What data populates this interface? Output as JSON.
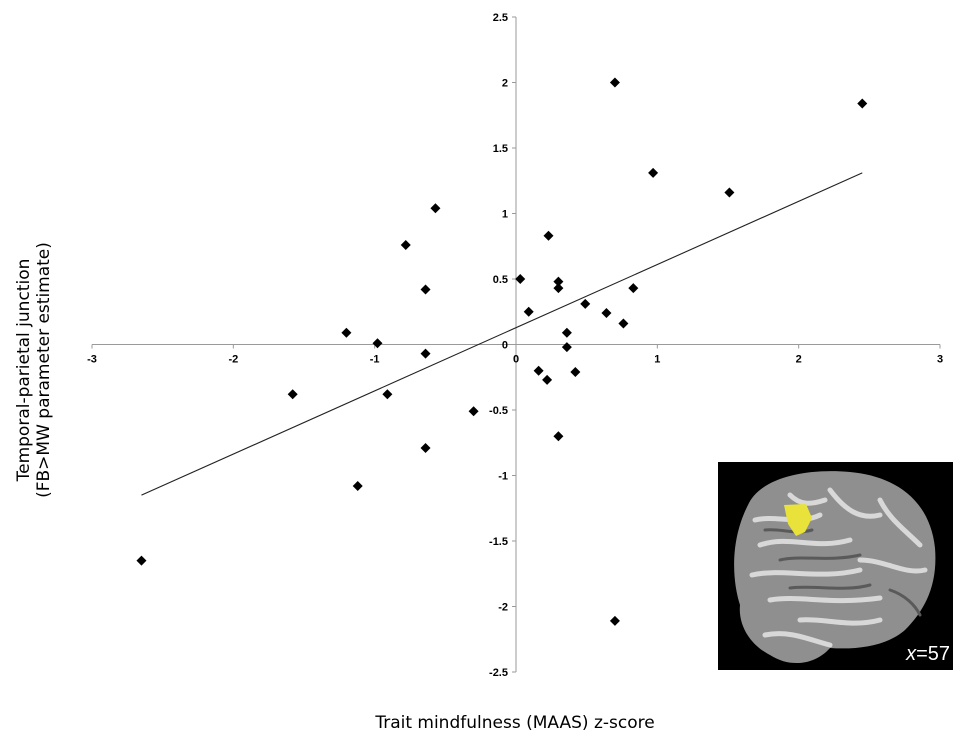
{
  "chart_data": {
    "type": "scatter",
    "xlabel": "Trait mindfulness (MAAS) z-score",
    "ylabel_line1": "Temporal-parietal junction",
    "ylabel_line2": "(FB>MW parameter estimate)",
    "xlim": [
      -3,
      3
    ],
    "ylim": [
      -2.5,
      2.5
    ],
    "xticks": [
      "-3",
      "-2",
      "-1",
      "0",
      "1",
      "2",
      "3"
    ],
    "yticks": [
      "2.5",
      "2",
      "1.5",
      "1",
      "0.5",
      "0",
      "-0.5",
      "-1",
      "-1.5",
      "-2",
      "-2.5"
    ],
    "grid": false,
    "marker": "diamond",
    "marker_color": "#000000",
    "points": [
      {
        "x": -2.65,
        "y": -1.65
      },
      {
        "x": -1.58,
        "y": -0.38
      },
      {
        "x": -1.2,
        "y": 0.09
      },
      {
        "x": -1.12,
        "y": -1.08
      },
      {
        "x": -0.98,
        "y": 0.01
      },
      {
        "x": -0.91,
        "y": -0.38
      },
      {
        "x": -0.78,
        "y": 0.76
      },
      {
        "x": -0.64,
        "y": 0.42
      },
      {
        "x": -0.64,
        "y": -0.07
      },
      {
        "x": -0.64,
        "y": -0.79
      },
      {
        "x": -0.57,
        "y": 1.04
      },
      {
        "x": -0.3,
        "y": -0.51
      },
      {
        "x": 0.03,
        "y": 0.5
      },
      {
        "x": 0.09,
        "y": 0.25
      },
      {
        "x": 0.16,
        "y": -0.2
      },
      {
        "x": 0.22,
        "y": -0.27
      },
      {
        "x": 0.23,
        "y": 0.83
      },
      {
        "x": 0.3,
        "y": 0.48
      },
      {
        "x": 0.3,
        "y": 0.43
      },
      {
        "x": 0.3,
        "y": -0.7
      },
      {
        "x": 0.36,
        "y": 0.09
      },
      {
        "x": 0.36,
        "y": -0.02
      },
      {
        "x": 0.42,
        "y": -0.21
      },
      {
        "x": 0.49,
        "y": 0.31
      },
      {
        "x": 0.64,
        "y": 0.24
      },
      {
        "x": 0.7,
        "y": 2.0
      },
      {
        "x": 0.7,
        "y": -2.11
      },
      {
        "x": 0.76,
        "y": 0.16
      },
      {
        "x": 0.83,
        "y": 0.43
      },
      {
        "x": 0.97,
        "y": 1.31
      },
      {
        "x": 1.51,
        "y": 1.16
      },
      {
        "x": 2.45,
        "y": 1.84
      }
    ],
    "trendline": {
      "x1": -2.65,
      "y1": -1.15,
      "x2": 2.45,
      "y2": 1.31
    }
  },
  "inset": {
    "label_var": "x",
    "label_value": "=57",
    "highlight_color": "#e8e23a"
  }
}
